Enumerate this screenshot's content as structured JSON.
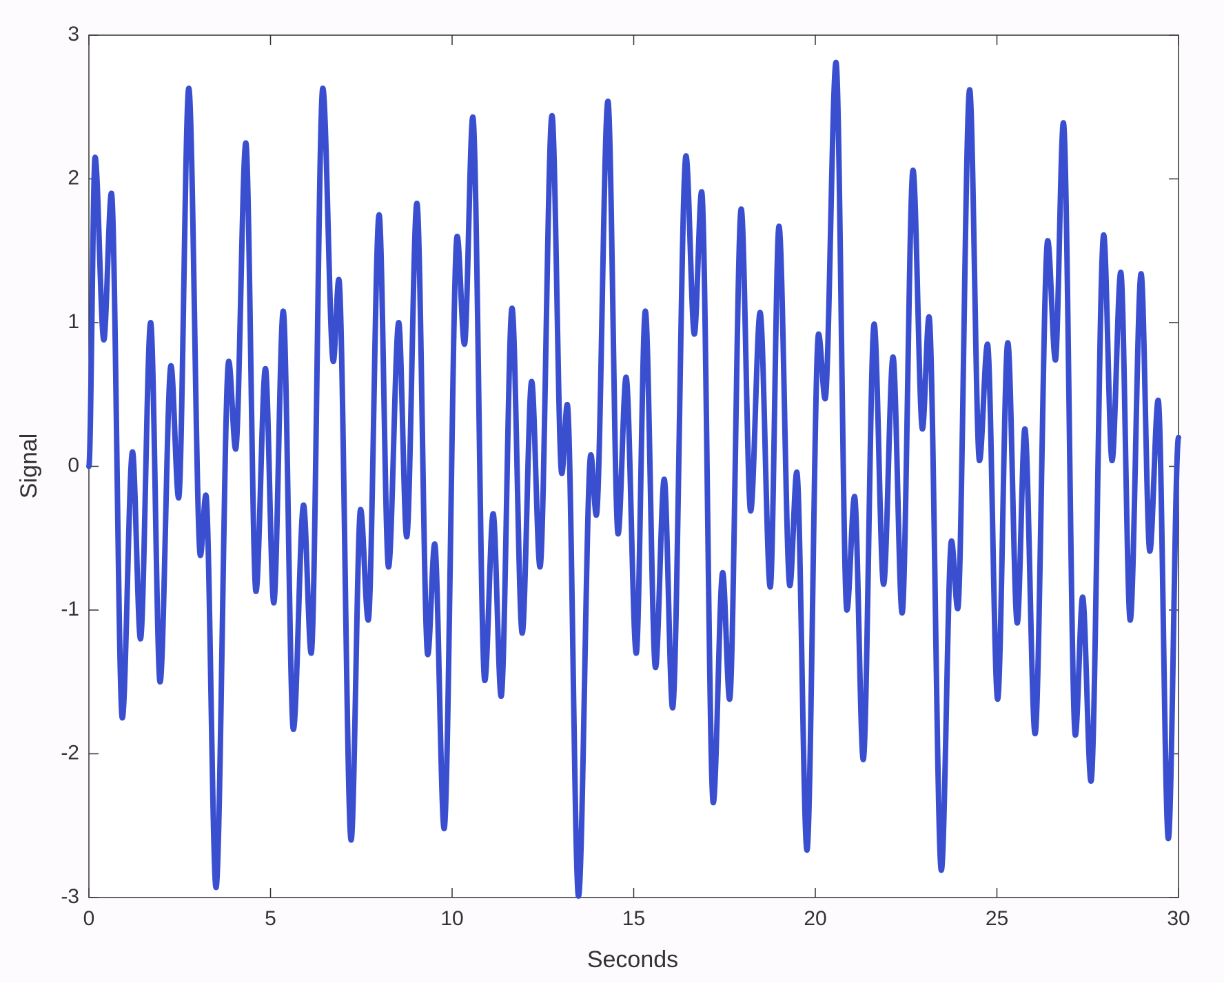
{
  "chart_data": {
    "type": "line",
    "xlabel": "Seconds",
    "ylabel": "Signal",
    "xlim": [
      0,
      30
    ],
    "ylim": [
      -3,
      3
    ],
    "xticks": [
      0,
      5,
      10,
      15,
      20,
      25,
      30
    ],
    "yticks": [
      -3,
      -2,
      -1,
      0,
      1,
      2,
      3
    ],
    "grid": false,
    "series": [
      {
        "color": "#3a4fd0",
        "x": [
          0,
          0.17,
          0.41,
          0.62,
          0.92,
          1.2,
          1.42,
          1.7,
          1.96,
          2.26,
          2.47,
          2.75,
          3.07,
          3.22,
          3.5,
          3.85,
          4.04,
          4.32,
          4.6,
          4.86,
          5.09,
          5.35,
          5.63,
          5.91,
          6.12,
          6.44,
          6.73,
          6.88,
          7.22,
          7.48,
          7.69,
          7.99,
          8.25,
          8.53,
          8.75,
          9.03,
          9.33,
          9.52,
          9.78,
          10.14,
          10.34,
          10.57,
          10.9,
          11.13,
          11.35,
          11.65,
          11.93,
          12.19,
          12.42,
          12.75,
          13.02,
          13.17,
          13.48,
          13.82,
          13.97,
          14.29,
          14.57,
          14.79,
          15.07,
          15.32,
          15.6,
          15.84,
          16.07,
          16.44,
          16.67,
          16.87,
          17.19,
          17.45,
          17.64,
          17.96,
          18.22,
          18.48,
          18.76,
          19.0,
          19.3,
          19.49,
          19.77,
          20.09,
          20.27,
          20.57,
          20.87,
          21.08,
          21.32,
          21.62,
          21.88,
          22.14,
          22.39,
          22.69,
          22.95,
          23.13,
          23.47,
          23.75,
          23.92,
          24.25,
          24.52,
          24.74,
          25.02,
          25.3,
          25.56,
          25.77,
          26.05,
          26.4,
          26.61,
          26.83,
          27.16,
          27.36,
          27.59,
          27.94,
          28.17,
          28.41,
          28.67,
          28.97,
          29.21,
          29.44,
          29.72,
          30
        ],
        "values": [
          0,
          2.15,
          0.88,
          1.9,
          -1.75,
          0.1,
          -1.2,
          1.0,
          -1.5,
          0.7,
          -0.22,
          2.63,
          -0.62,
          -0.2,
          -2.93,
          0.73,
          0.12,
          2.25,
          -0.87,
          0.68,
          -0.95,
          1.08,
          -1.83,
          -0.27,
          -1.3,
          2.63,
          0.73,
          1.3,
          -2.6,
          -0.3,
          -1.07,
          1.75,
          -0.7,
          1.0,
          -0.49,
          1.83,
          -1.31,
          -0.54,
          -2.52,
          1.6,
          0.85,
          2.43,
          -1.49,
          -0.33,
          -1.6,
          1.1,
          -1.16,
          0.59,
          -0.7,
          2.44,
          -0.05,
          0.43,
          -2.99,
          0.08,
          -0.34,
          2.54,
          -0.47,
          0.62,
          -1.3,
          1.08,
          -1.4,
          -0.09,
          -1.68,
          2.16,
          0.92,
          1.91,
          -2.34,
          -0.74,
          -1.62,
          1.79,
          -0.31,
          1.07,
          -0.84,
          1.67,
          -0.83,
          -0.04,
          -2.67,
          0.92,
          0.47,
          2.81,
          -1.0,
          -0.21,
          -2.04,
          0.99,
          -0.82,
          0.76,
          -1.02,
          2.06,
          0.26,
          1.04,
          -2.81,
          -0.52,
          -0.99,
          2.62,
          0.04,
          0.85,
          -1.62,
          0.86,
          -1.09,
          0.26,
          -1.86,
          1.57,
          0.74,
          2.39,
          -1.87,
          -0.91,
          -2.19,
          1.61,
          0.04,
          1.35,
          -1.07,
          1.34,
          -0.59,
          0.46,
          -2.59,
          0.2
        ]
      }
    ]
  }
}
